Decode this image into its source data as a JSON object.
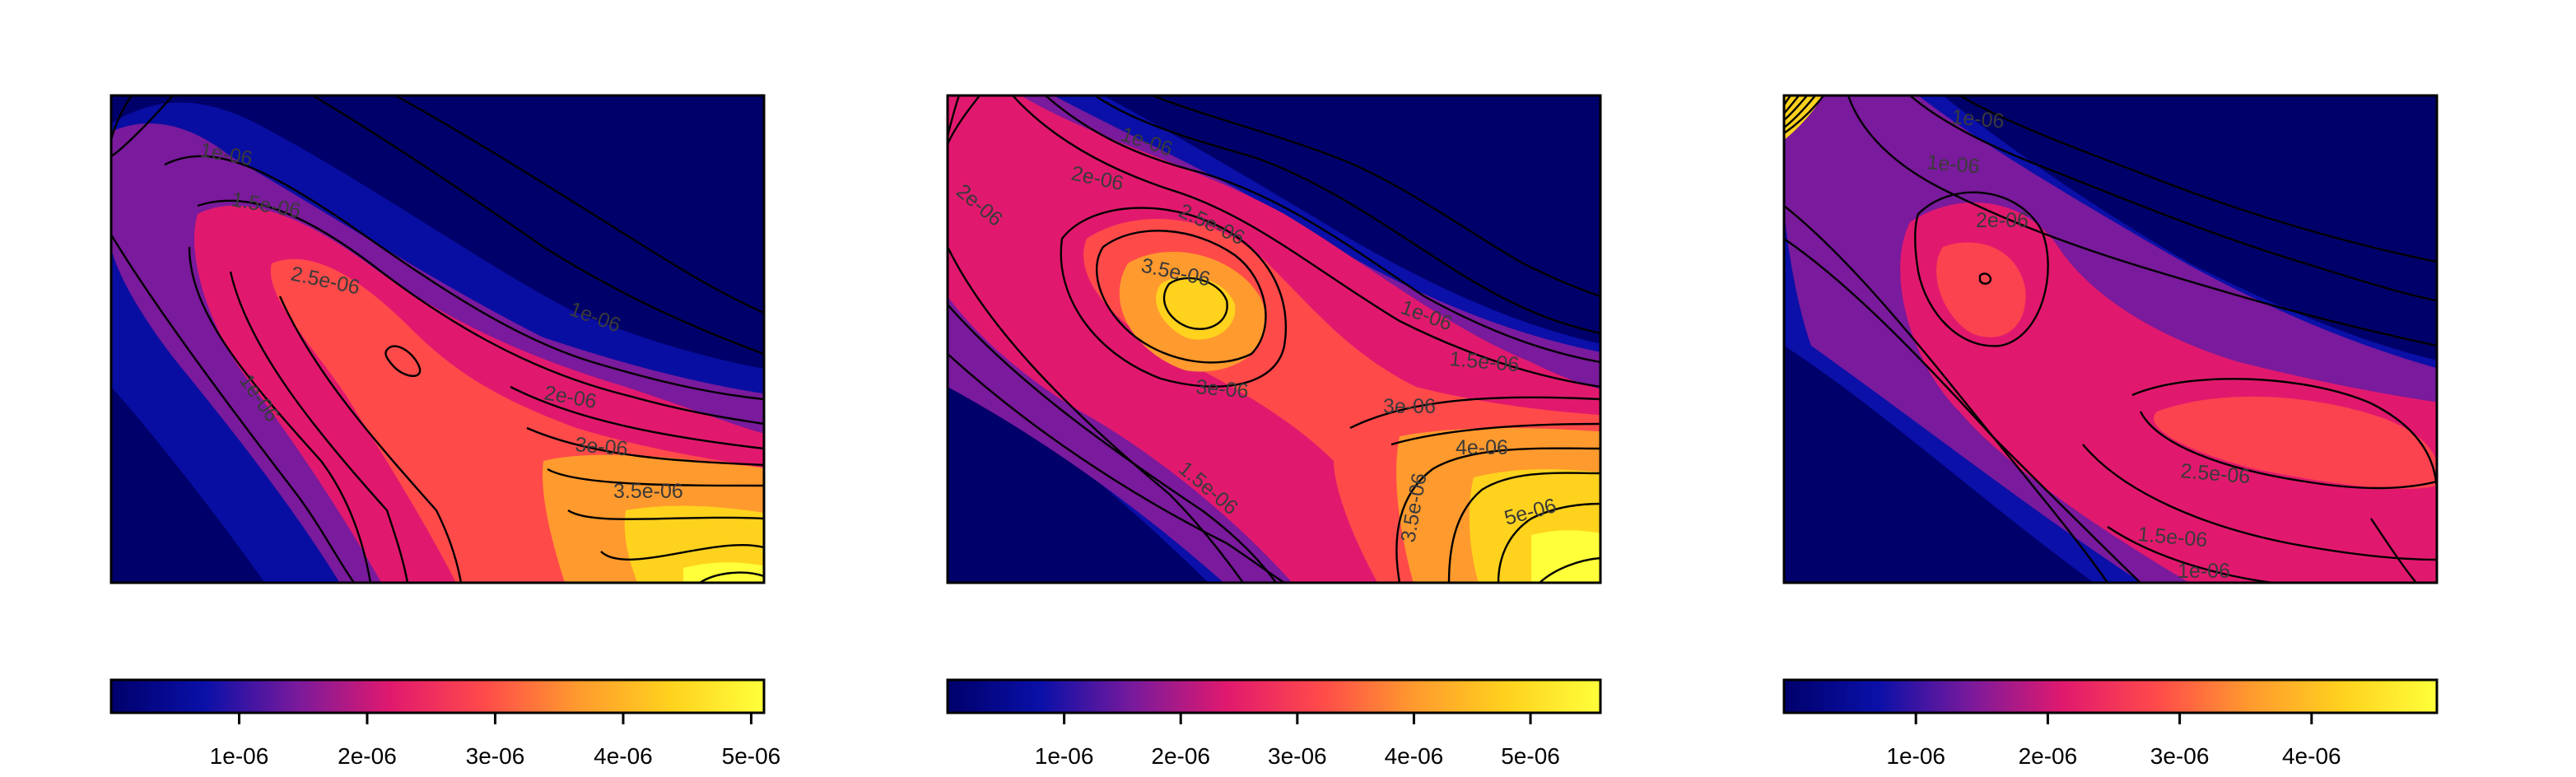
{
  "chart_data": [
    {
      "type": "heatmap",
      "title": "",
      "xlabel": "",
      "ylabel": "",
      "colorscale": [
        "#00006b",
        "#0a10a8",
        "#7a1a9c",
        "#e1196e",
        "#ff4a4a",
        "#ff9a2e",
        "#ffd21e",
        "#ffff3a"
      ],
      "colorbar": {
        "range": [
          0,
          5.1e-06
        ],
        "ticks": [
          "1e-06",
          "2e-06",
          "3e-06",
          "4e-06",
          "5e-06"
        ]
      },
      "contour_labels": [
        "1e-06",
        "1.5e-06",
        "2e-06",
        "2.5e-06",
        "3e-06",
        "3.5e-06",
        "1e-06",
        "1e-06"
      ],
      "peak_value": 5.1e-06
    },
    {
      "type": "heatmap",
      "title": "",
      "xlabel": "",
      "ylabel": "",
      "colorscale": [
        "#00006b",
        "#0a10a8",
        "#7a1a9c",
        "#e1196e",
        "#ff4a4a",
        "#ff9a2e",
        "#ffd21e",
        "#ffff3a"
      ],
      "colorbar": {
        "range": [
          0,
          5.6e-06
        ],
        "ticks": [
          "1e-06",
          "2e-06",
          "3e-06",
          "4e-06",
          "5e-06"
        ]
      },
      "contour_labels": [
        "1e-06",
        "2e-06",
        "2e-06",
        "2.5e-06",
        "3.5e-06",
        "3e-06",
        "1.5e-06",
        "3e-06",
        "4e-06",
        "3.5e-06",
        "5e-06",
        "1.5e-06",
        "1e-06"
      ],
      "peak_value": 5.6e-06
    },
    {
      "type": "heatmap",
      "title": "",
      "xlabel": "",
      "ylabel": "",
      "colorscale": [
        "#00006b",
        "#0a10a8",
        "#7a1a9c",
        "#e1196e",
        "#ff4a4a",
        "#ff9a2e",
        "#ffd21e",
        "#ffff3a"
      ],
      "colorbar": {
        "range": [
          0,
          4.95e-06
        ],
        "ticks": [
          "1e-06",
          "2e-06",
          "3e-06",
          "4e-06"
        ]
      },
      "contour_labels": [
        "1e-06",
        "1e-06",
        "2e-06",
        "2.5e-06",
        "1.5e-06",
        "1e-06"
      ],
      "peak_value": 4.95e-06
    }
  ]
}
